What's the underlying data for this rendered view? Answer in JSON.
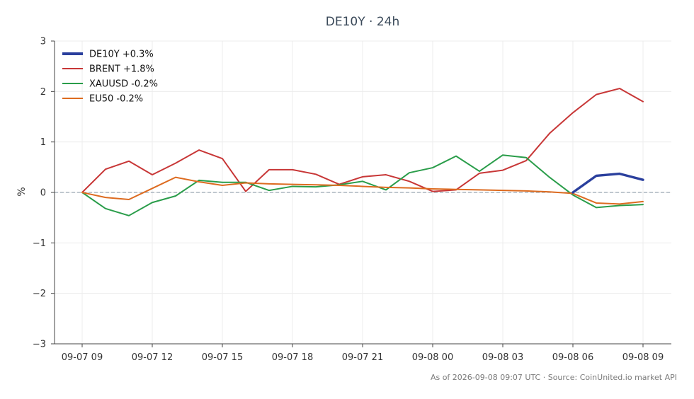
{
  "chart_data": {
    "type": "line",
    "title": "DE10Y · 24h",
    "ylabel": "%",
    "ylim": [
      -3,
      3
    ],
    "yticks": [
      3,
      2,
      1,
      0,
      -1,
      -2,
      -3
    ],
    "ytick_labels": [
      "3",
      "2",
      "1",
      "0",
      "−1",
      "−2",
      "−3"
    ],
    "x_tick_indices": [
      0,
      3,
      6,
      9,
      12,
      15,
      18,
      21,
      24
    ],
    "x_tick_labels": [
      "09-07 09",
      "09-07 12",
      "09-07 15",
      "09-07 18",
      "09-07 21",
      "09-08 00",
      "09-08 03",
      "09-08 06",
      "09-08 09"
    ],
    "x_count": 25,
    "grid": true,
    "zero_line": true,
    "legend_placement": "top-left",
    "series": [
      {
        "name": "DE10Y +0.3%",
        "color": "#2a3f9d",
        "highlight": true,
        "start_index": 21,
        "values": [
          0.0,
          0.33,
          0.37,
          0.25
        ]
      },
      {
        "name": "BRENT +1.8%",
        "color": "#c83737",
        "start_index": 0,
        "values": [
          0.0,
          0.46,
          0.62,
          0.35,
          0.58,
          0.84,
          0.67,
          0.02,
          0.45,
          0.45,
          0.36,
          0.16,
          0.31,
          0.35,
          0.22,
          0.02,
          0.05,
          0.38,
          0.44,
          0.63,
          1.17,
          1.58,
          1.94,
          2.06,
          1.8
        ]
      },
      {
        "name": "XAUUSD -0.2%",
        "color": "#2a9d4a",
        "start_index": 0,
        "values": [
          0.0,
          -0.32,
          -0.46,
          -0.2,
          -0.07,
          0.24,
          0.2,
          0.2,
          0.04,
          0.12,
          0.11,
          0.15,
          0.22,
          0.05,
          0.39,
          0.49,
          0.72,
          0.42,
          0.74,
          0.69,
          0.3,
          -0.05,
          -0.3,
          -0.26,
          -0.24
        ]
      },
      {
        "name": "EU50 -0.2%",
        "color": "#dd6b20",
        "start_index": 0,
        "values": [
          0.0,
          -0.1,
          -0.14,
          0.08,
          0.3,
          0.21,
          0.14,
          0.19,
          0.17,
          0.16,
          0.15,
          0.14,
          0.12,
          0.1,
          0.09,
          0.07,
          0.06,
          0.05,
          0.04,
          0.03,
          0.01,
          -0.02,
          -0.21,
          -0.23,
          -0.18
        ]
      }
    ]
  },
  "footer": {
    "text": "As of 2026-09-08 09:07 UTC · Source: CoinUnited.io market API"
  }
}
